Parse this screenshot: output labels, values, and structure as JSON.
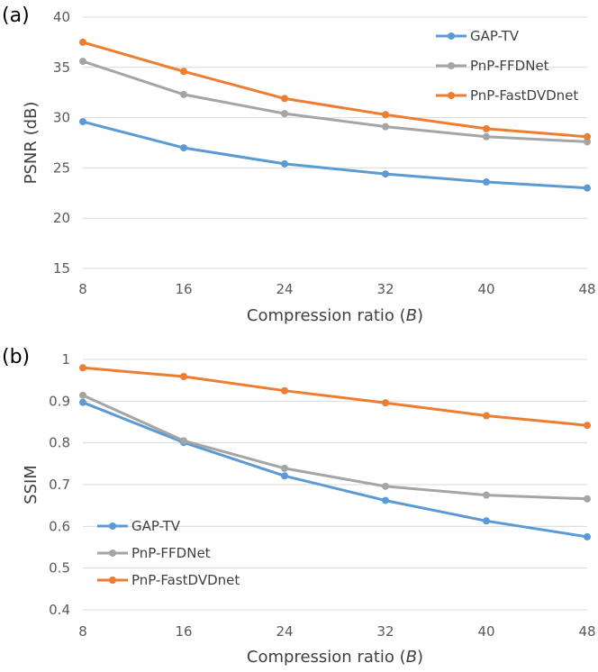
{
  "chart_data": [
    {
      "type": "line",
      "panel_label": "(a)",
      "x": [
        8,
        16,
        24,
        32,
        40,
        48
      ],
      "xlabel_prefix": "Compression ratio (",
      "xlabel_var": "B",
      "xlabel_suffix": ")",
      "ylabel": "PSNR (dB)",
      "ylim": [
        15,
        40
      ],
      "yticks": [
        15,
        20,
        25,
        30,
        35,
        40
      ],
      "ytick_labels": [
        "15",
        "20",
        "25",
        "30",
        "35",
        "40"
      ],
      "xtick_labels": [
        "8",
        "16",
        "24",
        "32",
        "40",
        "48"
      ],
      "grid": true,
      "legend_position": "top-right",
      "series": [
        {
          "name": "GAP-TV",
          "color": "#5b9bd5",
          "values": [
            29.6,
            27.0,
            25.4,
            24.4,
            23.6,
            23.0
          ]
        },
        {
          "name": "PnP-FFDNet",
          "color": "#a5a5a5",
          "values": [
            35.6,
            32.3,
            30.4,
            29.1,
            28.1,
            27.6
          ]
        },
        {
          "name": "PnP-FastDVDnet",
          "color": "#ed7d31",
          "values": [
            37.5,
            34.6,
            31.9,
            30.3,
            28.9,
            28.1
          ]
        }
      ]
    },
    {
      "type": "line",
      "panel_label": "(b)",
      "x": [
        8,
        16,
        24,
        32,
        40,
        48
      ],
      "xlabel_prefix": "Compression ratio (",
      "xlabel_var": "B",
      "xlabel_suffix": ")",
      "ylabel": "SSIM",
      "ylim": [
        0.4,
        1.0
      ],
      "yticks": [
        0.4,
        0.5,
        0.6,
        0.7,
        0.8,
        0.9,
        1.0
      ],
      "ytick_labels": [
        "0.4",
        "0.5",
        "0.6",
        "0.7",
        "0.8",
        "0.9",
        "1"
      ],
      "xtick_labels": [
        "8",
        "16",
        "24",
        "32",
        "40",
        "48"
      ],
      "grid": true,
      "legend_position": "bottom-left",
      "series": [
        {
          "name": "GAP-TV",
          "color": "#5b9bd5",
          "values": [
            0.897,
            0.801,
            0.721,
            0.662,
            0.613,
            0.575
          ]
        },
        {
          "name": "PnP-FFDNet",
          "color": "#a5a5a5",
          "values": [
            0.914,
            0.805,
            0.739,
            0.696,
            0.675,
            0.666
          ]
        },
        {
          "name": "PnP-FastDVDnet",
          "color": "#ed7d31",
          "values": [
            0.98,
            0.959,
            0.925,
            0.896,
            0.865,
            0.842
          ]
        }
      ]
    }
  ]
}
